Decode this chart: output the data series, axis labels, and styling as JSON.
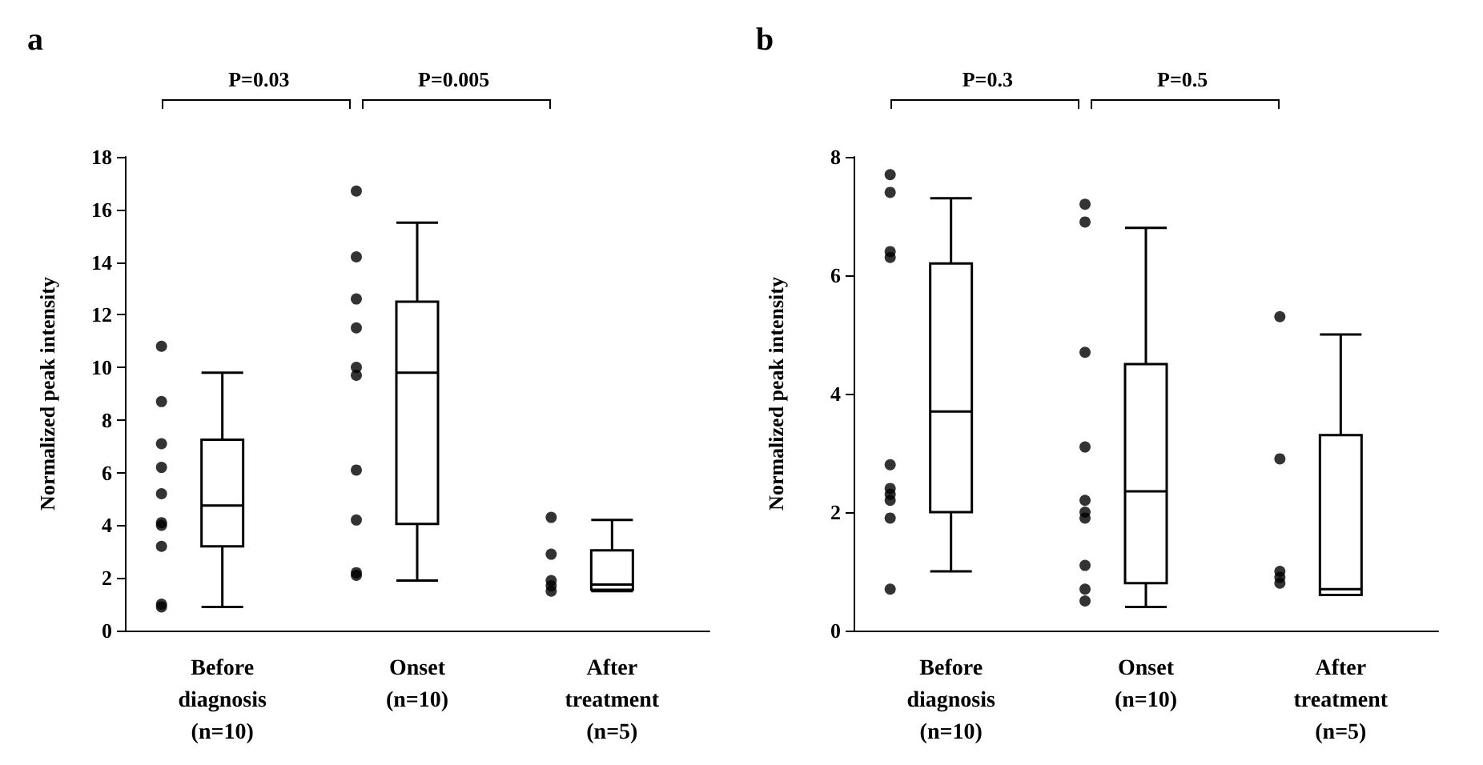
{
  "chart_data": [
    {
      "type": "box",
      "title": "a",
      "ylabel": "Normalized peak intensity",
      "categories": [
        "Before\ndiagnosis\n(n=10)",
        "Onset\n(n=10)",
        "After\ntreatment\n(n=5)"
      ],
      "ylim": [
        0,
        18
      ],
      "yticks": [
        0,
        2,
        4,
        6,
        8,
        10,
        12,
        14,
        16,
        18
      ],
      "grid": false,
      "annotations": [
        "P=0.03",
        "P=0.005"
      ],
      "series": [
        {
          "color": "#000000",
          "boxes": [
            {
              "low": 0.9,
              "q1": 3.2,
              "median": 4.75,
              "q3": 7.25,
              "high": 9.8
            },
            {
              "low": 1.9,
              "q1": 4.05,
              "median": 9.8,
              "q3": 12.5,
              "high": 15.5
            },
            {
              "low": 1.5,
              "q1": 1.55,
              "median": 1.75,
              "q3": 3.05,
              "high": 4.2
            }
          ]
        },
        {
          "type": "scatter",
          "color": "#000000",
          "marker": "circle",
          "x": [
            "Before\ndiagnosis\n(n=10)",
            "Before\ndiagnosis\n(n=10)",
            "Before\ndiagnosis\n(n=10)",
            "Before\ndiagnosis\n(n=10)",
            "Before\ndiagnosis\n(n=10)",
            "Before\ndiagnosis\n(n=10)",
            "Before\ndiagnosis\n(n=10)",
            "Before\ndiagnosis\n(n=10)",
            "Before\ndiagnosis\n(n=10)",
            "Before\ndiagnosis\n(n=10)",
            "Onset\n(n=10)",
            "Onset\n(n=10)",
            "Onset\n(n=10)",
            "Onset\n(n=10)",
            "Onset\n(n=10)",
            "Onset\n(n=10)",
            "Onset\n(n=10)",
            "Onset\n(n=10)",
            "Onset\n(n=10)",
            "Onset\n(n=10)",
            "After\ntreatment\n(n=5)",
            "After\ntreatment\n(n=5)",
            "After\ntreatment\n(n=5)",
            "After\ntreatment\n(n=5)",
            "After\ntreatment\n(n=5)"
          ],
          "values": [
            10.8,
            8.7,
            7.1,
            6.2,
            5.2,
            4.1,
            4.0,
            3.2,
            1.0,
            0.9,
            16.7,
            14.2,
            12.6,
            11.5,
            10.0,
            9.7,
            6.1,
            4.2,
            2.2,
            2.1,
            4.3,
            2.9,
            1.9,
            1.7,
            1.5
          ]
        }
      ]
    },
    {
      "type": "box",
      "title": "b",
      "ylabel": "Normalized peak intensity",
      "categories": [
        "Before\ndiagnosis\n(n=10)",
        "Onset\n(n=10)",
        "After\ntreatment\n(n=5)"
      ],
      "ylim": [
        0,
        8
      ],
      "yticks": [
        0,
        2,
        4,
        6,
        8
      ],
      "grid": false,
      "annotations": [
        "P=0.3",
        "P=0.5"
      ],
      "series": [
        {
          "color": "#000000",
          "boxes": [
            {
              "low": 1.0,
              "q1": 2.0,
              "median": 3.7,
              "q3": 6.2,
              "high": 7.3
            },
            {
              "low": 0.4,
              "q1": 0.8,
              "median": 2.35,
              "q3": 4.5,
              "high": 6.8
            },
            {
              "low": 0.6,
              "q1": 0.6,
              "median": 0.7,
              "q3": 3.3,
              "high": 5.0
            }
          ]
        },
        {
          "type": "scatter",
          "color": "#000000",
          "marker": "circle",
          "x": [
            "Before\ndiagnosis\n(n=10)",
            "Before\ndiagnosis\n(n=10)",
            "Before\ndiagnosis\n(n=10)",
            "Before\ndiagnosis\n(n=10)",
            "Before\ndiagnosis\n(n=10)",
            "Before\ndiagnosis\n(n=10)",
            "Before\ndiagnosis\n(n=10)",
            "Before\ndiagnosis\n(n=10)",
            "Before\ndiagnosis\n(n=10)",
            "Before\ndiagnosis\n(n=10)",
            "Onset\n(n=10)",
            "Onset\n(n=10)",
            "Onset\n(n=10)",
            "Onset\n(n=10)",
            "Onset\n(n=10)",
            "Onset\n(n=10)",
            "Onset\n(n=10)",
            "Onset\n(n=10)",
            "Onset\n(n=10)",
            "Onset\n(n=10)",
            "After\ntreatment\n(n=5)",
            "After\ntreatment\n(n=5)",
            "After\ntreatment\n(n=5)",
            "After\ntreatment\n(n=5)",
            "After\ntreatment\n(n=5)"
          ],
          "values": [
            7.7,
            7.4,
            6.4,
            6.3,
            2.8,
            2.4,
            2.3,
            2.2,
            1.9,
            0.7,
            7.2,
            6.9,
            4.7,
            3.1,
            2.2,
            2.0,
            1.9,
            1.1,
            0.7,
            0.5,
            5.3,
            2.9,
            1.0,
            0.9,
            0.8
          ]
        }
      ]
    }
  ]
}
